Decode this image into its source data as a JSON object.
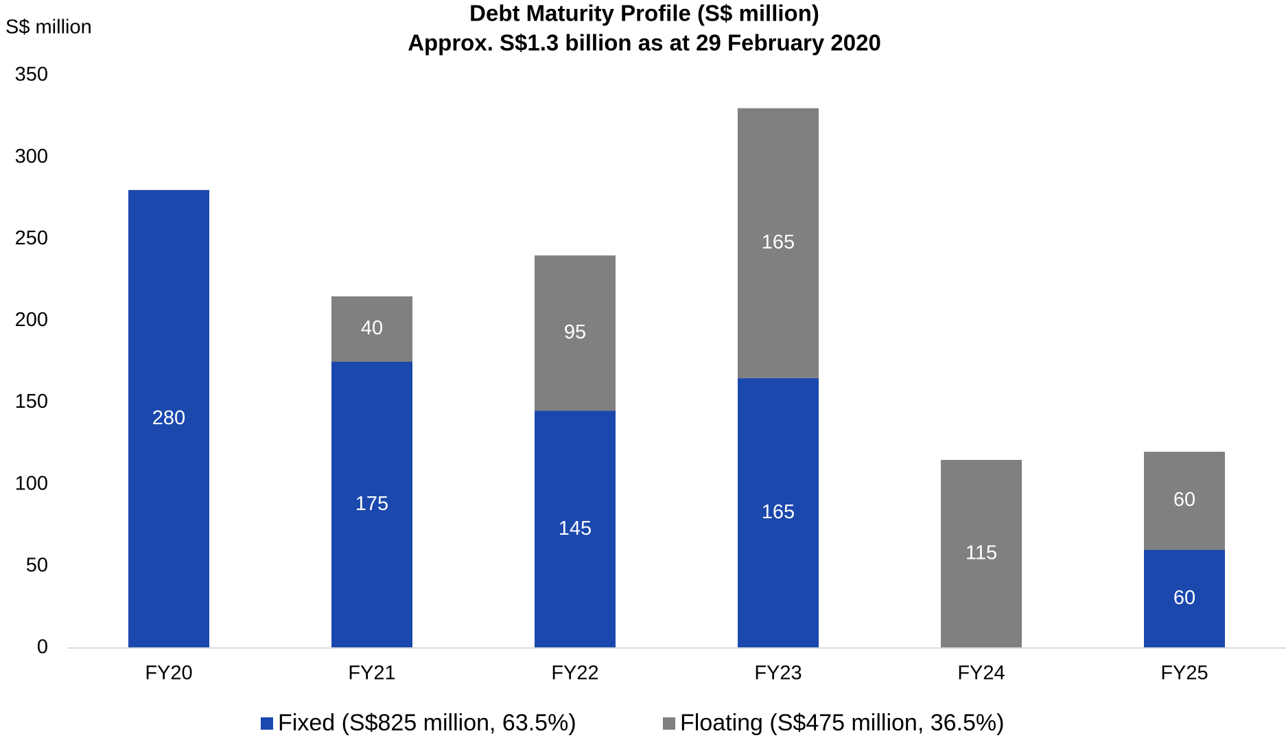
{
  "chart_data": {
    "type": "stacked_bar",
    "title": [
      "Debt Maturity Profile (S$ million)",
      "Approx. S$1.3 billion as at 29 February 2020"
    ],
    "y_label": "S$ million",
    "categories": [
      "FY20",
      "FY21",
      "FY22",
      "FY23",
      "FY24",
      "FY25"
    ],
    "series": [
      {
        "name": "Fixed (S$825 million, 63.5%)",
        "color": "#1b48ad",
        "values": [
          280,
          175,
          145,
          165,
          null,
          60
        ]
      },
      {
        "name": "Floating (S$475 million, 36.5%)",
        "color": "#808080",
        "values": [
          null,
          40,
          95,
          165,
          115,
          60
        ]
      }
    ],
    "ylim": [
      0,
      350
    ],
    "yticks": [
      0,
      50,
      100,
      150,
      200,
      250,
      300,
      350
    ],
    "grid": false,
    "legend": "bottom"
  }
}
